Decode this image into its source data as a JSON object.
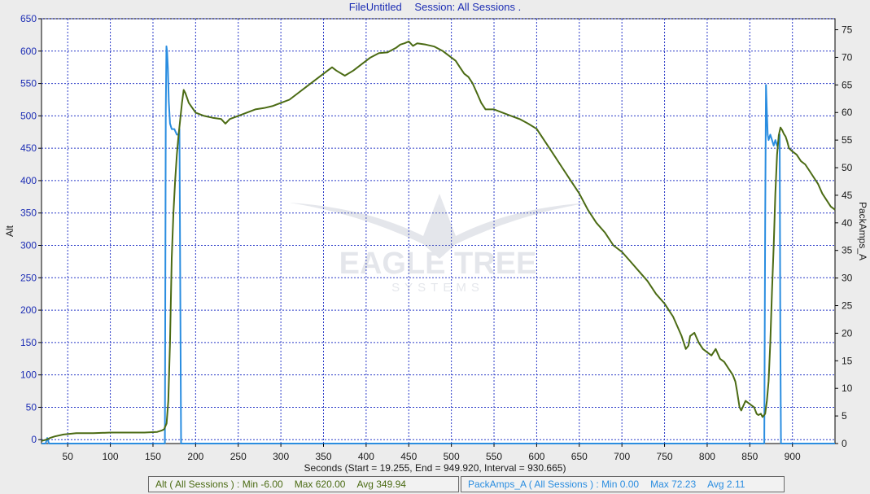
{
  "header": {
    "file_label": "FileUntitled",
    "session_label": "Session: All Sessions ."
  },
  "watermark": {
    "line1": "EAGLE TREE",
    "line2": "SYSTEMS"
  },
  "colors": {
    "alt": "#4b6b14",
    "amps": "#2a8de0",
    "axis_left": "#1c2db4",
    "grid": "#2b3bc8"
  },
  "chart_data": {
    "type": "line",
    "title": "FileUntitled   Session: All Sessions .",
    "xlabel": "Seconds (Start = 19.255,  End = 949.920,  Interval =  930.665)",
    "ylabel": "Alt",
    "y2label": "PackAmps_A",
    "xlim": [
      19.255,
      949.92
    ],
    "ylim": [
      -6,
      650
    ],
    "y2lim": [
      0,
      77
    ],
    "x_ticks": [
      50,
      100,
      150,
      200,
      250,
      300,
      350,
      400,
      450,
      500,
      550,
      600,
      650,
      700,
      750,
      800,
      850,
      900
    ],
    "y_ticks": [
      0,
      50,
      100,
      150,
      200,
      250,
      300,
      350,
      400,
      450,
      500,
      550,
      600,
      650
    ],
    "y2_ticks": [
      0,
      5,
      10,
      15,
      20,
      25,
      30,
      35,
      40,
      45,
      50,
      55,
      60,
      65,
      70,
      75
    ],
    "grid": true,
    "series": [
      {
        "name": "Alt",
        "axis": "left",
        "x": [
          19.3,
          25,
          30,
          35,
          45,
          60,
          80,
          100,
          120,
          140,
          155,
          160,
          163,
          166,
          168,
          170,
          172,
          174,
          176,
          178,
          180,
          182,
          184,
          186,
          188,
          192,
          200,
          210,
          220,
          230,
          235,
          240,
          250,
          260,
          270,
          280,
          290,
          300,
          310,
          320,
          330,
          340,
          350,
          360,
          365,
          375,
          385,
          395,
          405,
          415,
          425,
          435,
          440,
          445,
          450,
          455,
          460,
          470,
          480,
          490,
          500,
          505,
          510,
          515,
          520,
          525,
          530,
          535,
          540,
          550,
          560,
          570,
          580,
          590,
          600,
          610,
          620,
          630,
          640,
          650,
          660,
          670,
          680,
          690,
          700,
          710,
          720,
          730,
          740,
          750,
          755,
          760,
          765,
          770,
          775,
          778,
          780,
          785,
          790,
          795,
          800,
          805,
          810,
          815,
          820,
          825,
          830,
          833,
          835,
          838,
          840,
          845,
          850,
          855,
          858,
          860,
          863,
          865,
          868,
          870,
          872,
          874,
          876,
          878,
          880,
          882,
          884,
          886,
          888,
          890,
          892,
          894,
          896,
          900,
          905,
          910,
          915,
          920,
          925,
          930,
          935,
          940,
          945,
          949.9
        ],
        "values": [
          -2,
          0,
          3,
          5,
          8,
          10,
          10,
          11,
          11,
          11,
          12,
          14,
          16,
          25,
          60,
          150,
          280,
          350,
          400,
          440,
          470,
          495,
          520,
          540,
          535,
          520,
          505,
          500,
          497,
          495,
          488,
          495,
          500,
          505,
          510,
          512,
          515,
          520,
          525,
          535,
          545,
          555,
          565,
          575,
          570,
          562,
          570,
          580,
          590,
          597,
          598,
          605,
          610,
          612,
          615,
          608,
          612,
          610,
          607,
          600,
          590,
          585,
          575,
          565,
          560,
          550,
          535,
          520,
          510,
          510,
          505,
          500,
          495,
          488,
          480,
          460,
          440,
          420,
          400,
          380,
          355,
          335,
          320,
          300,
          290,
          275,
          260,
          245,
          225,
          210,
          200,
          190,
          175,
          160,
          140,
          145,
          160,
          165,
          150,
          140,
          135,
          130,
          140,
          125,
          120,
          110,
          100,
          90,
          75,
          50,
          45,
          60,
          55,
          50,
          40,
          38,
          40,
          35,
          40,
          60,
          90,
          150,
          230,
          300,
          380,
          440,
          470,
          482,
          478,
          472,
          468,
          460,
          450,
          445,
          440,
          430,
          425,
          415,
          405,
          395,
          380,
          370,
          360,
          355
        ]
      },
      {
        "name": "PackAmps_A",
        "axis": "right",
        "x": [
          19.3,
          24,
          26,
          28,
          30,
          35,
          60,
          100,
          150,
          164,
          165,
          165.8,
          166.5,
          167.5,
          168.5,
          170,
          172,
          175,
          178,
          180,
          181,
          182,
          183,
          185,
          190,
          250,
          300,
          400,
          500,
          600,
          700,
          800,
          860,
          867,
          868,
          869,
          870,
          871,
          872,
          874,
          876,
          878,
          880,
          882,
          884,
          885,
          885.8,
          886.5,
          888,
          900,
          949.9
        ],
        "values": [
          0,
          0,
          1,
          0,
          0,
          0,
          0,
          0,
          0,
          0,
          60,
          72,
          71,
          68,
          62,
          58,
          57,
          57,
          56,
          56,
          57,
          28,
          0,
          0,
          0,
          0,
          0,
          0,
          0,
          0,
          0,
          0,
          0,
          0,
          40,
          65,
          60,
          56,
          55,
          56,
          55,
          54,
          55,
          54,
          55,
          56,
          20,
          0,
          0,
          0,
          0
        ]
      }
    ],
    "legend": [
      {
        "series": "Alt",
        "text": "Alt ( All Sessions ) : Min -6.00    Max 620.00    Avg 349.94"
      },
      {
        "series": "PackAmps_A",
        "text": "PackAmps_A ( All Sessions ) : Min 0.00    Max 72.23    Avg 2.11"
      }
    ],
    "legend_position": "bottom"
  },
  "legend_alt": {
    "name": "Alt ( All Sessions ) : Min -6.00",
    "max": "Max 620.00",
    "avg": "Avg 349.94"
  },
  "legend_amps": {
    "name": "PackAmps_A ( All Sessions ) : Min 0.00",
    "max": "Max 72.23",
    "avg": "Avg 2.11"
  }
}
